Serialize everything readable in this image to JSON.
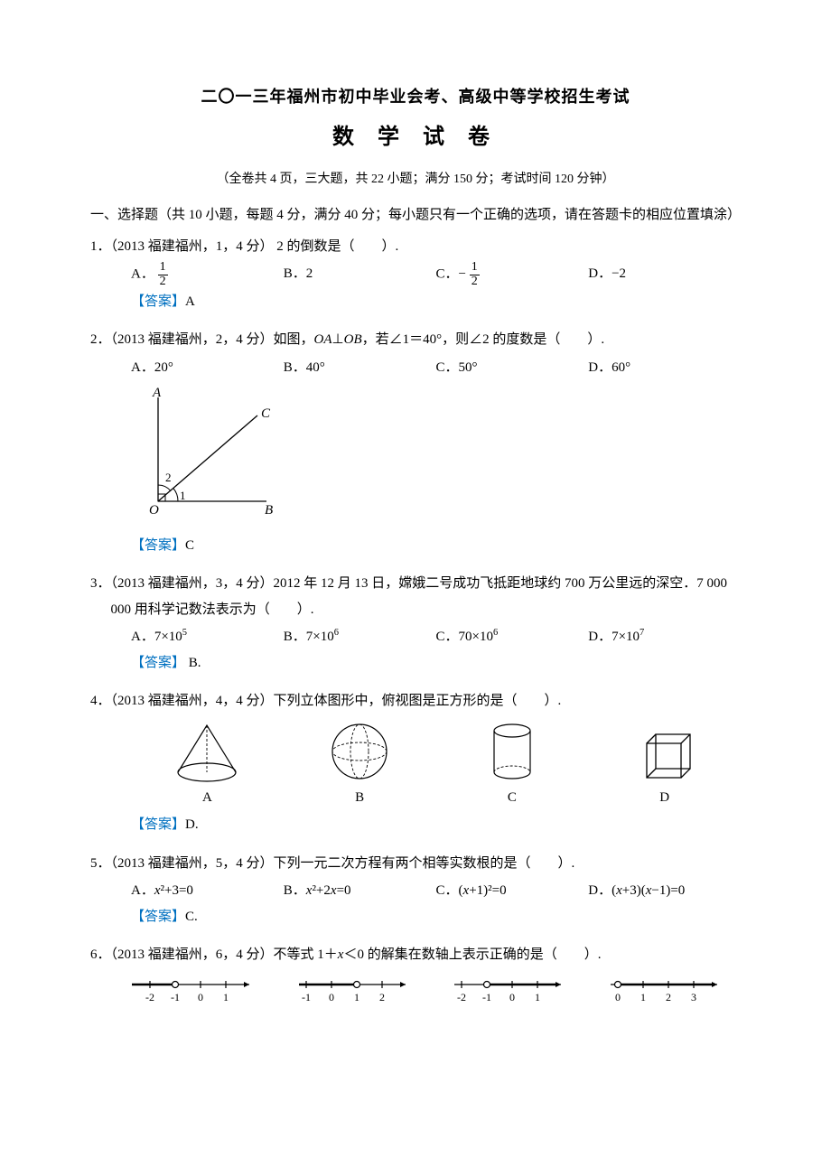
{
  "header": {
    "line1": "二〇一三年福州市初中毕业会考、高级中等学校招生考试",
    "line2": "数 学 试 卷",
    "meta": "（全卷共 4 页，三大题，共 22 小题；满分 150 分；考试时间 120 分钟）"
  },
  "section1": {
    "heading": "一、选择题（共 10 小题，每题 4 分，满分 40 分；每小题只有一个正确的选项，请在答题卡的相应位置填涂）"
  },
  "q1": {
    "num": "1．",
    "src": "（2013 福建福州，1，4 分）",
    "stem_a": " 2 的倒数是（　　）.",
    "optA_pre": "A．",
    "fracA_num": "1",
    "fracA_den": "2",
    "optB": "B．2",
    "optC_pre": "C．−",
    "fracC_num": "1",
    "fracC_den": "2",
    "optD": "D．−2",
    "answer_label": "【答案】",
    "answer": "A"
  },
  "q2": {
    "num": "2．",
    "src": "（2013 福建福州，2，4 分）",
    "stem": "如图，OA⊥OB，若∠1＝40°，则∠2 的度数是（　　）.",
    "optA": "A．20°",
    "optB": "B．40°",
    "optC": "C．50°",
    "optD": "D．60°",
    "labelA": "A",
    "labelB": "B",
    "labelC": "C",
    "labelO": "O",
    "lbl1": "1",
    "lbl2": "2",
    "answer_label": "【答案】",
    "answer": "C"
  },
  "q3": {
    "num": "3．",
    "src": "（2013 福建福州，3，4 分）",
    "stem": "2012 年 12 月 13 日，嫦娥二号成功飞抵距地球约 700 万公里远的深空．7 000 000 用科学记数法表示为（　　）.",
    "optA_pre": "A．7×10",
    "optA_sup": "5",
    "optB_pre": "B．7×10",
    "optB_sup": "6",
    "optC_pre": "C．70×10",
    "optC_sup": "6",
    "optD_pre": "D．7×10",
    "optD_sup": "7",
    "answer_label": "【答案】",
    "answer": " B."
  },
  "q4": {
    "num": "4．",
    "src": "（2013 福建福州，4，4 分）",
    "stem": "下列立体图形中，俯视图是正方形的是（　　）.",
    "lblA": "A",
    "lblB": "B",
    "lblC": "C",
    "lblD": "D",
    "answer_label": "【答案】",
    "answer": "D."
  },
  "q5": {
    "num": "5．",
    "src": "（2013 福建福州，5，4 分）",
    "stem": "下列一元二次方程有两个相等实数根的是（　　）.",
    "optA": "A．x²+3=0",
    "optB": "B．x²+2x=0",
    "optC": "C．(x+1)²=0",
    "optD": "D．(x+3)(x−1)=0",
    "answer_label": "【答案】",
    "answer": "C."
  },
  "q6": {
    "num": "6．",
    "src": "（2013 福建福州，6，4 分）",
    "stem": "不等式 1＋x＜0 的解集在数轴上表示正确的是（　　）.",
    "nl1": {
      "ticks": [
        "-2",
        "-1",
        "0",
        "1"
      ],
      "open_at": 1,
      "dir": "left",
      "extend_left": true
    },
    "nl2": {
      "ticks": [
        "-1",
        "0",
        "1",
        "2"
      ],
      "open_at": 2,
      "dir": "left",
      "extend_left": false
    },
    "nl3": {
      "ticks": [
        "-2",
        "-1",
        "0",
        "1"
      ],
      "open_at": 1,
      "dir": "right",
      "extend_left": false
    },
    "nl4": {
      "ticks": [
        "0",
        "1",
        "2",
        "3"
      ],
      "open_at": 0,
      "dir": "right",
      "extend_left": false
    }
  }
}
